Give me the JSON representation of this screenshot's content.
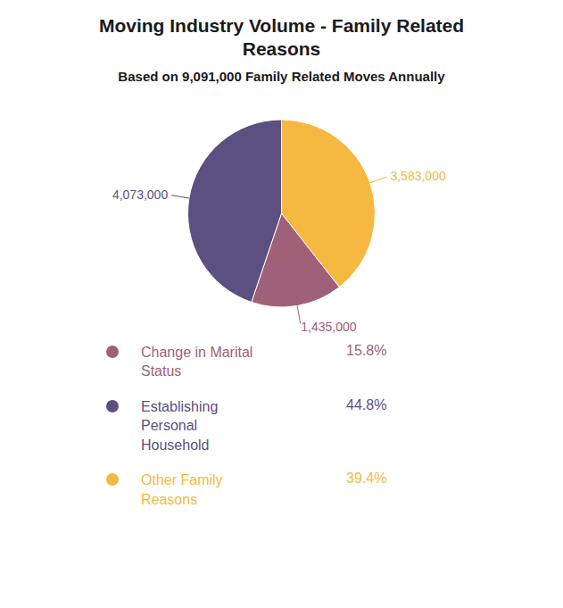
{
  "chart_data": {
    "type": "pie",
    "title": "Moving Industry Volume - Family Related\nReasons",
    "subtitle": "Based on 9,091,000 Family Related Moves Annually",
    "values": [
      3583000,
      1435000,
      4073000
    ],
    "value_labels": [
      "3,583,000",
      "1,435,000",
      "4,073,000"
    ],
    "colors": [
      "#f5b942",
      "#a0607a",
      "#5b5080"
    ],
    "data_labels": true,
    "legend": "bottom",
    "legend_entries": [
      {
        "name": "Change in Marital\nStatus",
        "color": "#a0607a",
        "value": 15.8,
        "label": "15.8%"
      },
      {
        "name": "Establishing\nPersonal\nHousehold",
        "color": "#5b5080",
        "value": 44.8,
        "label": "44.8%"
      },
      {
        "name": "Other Family\nReasons",
        "color": "#f5b942",
        "value": 39.4,
        "label": "39.4%"
      }
    ]
  }
}
